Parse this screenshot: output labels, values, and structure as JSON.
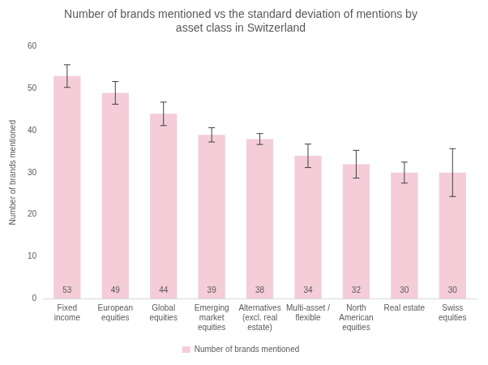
{
  "chart_data": {
    "type": "bar",
    "title": "Number of brands mentioned vs the standard deviation of mentions by asset class in Switzerland",
    "y_label": "Number of brands mentioned",
    "categories": [
      "Fixed income",
      "European equities",
      "Global equities",
      "Emerging market equities",
      "Alternatives (excl. real estate)",
      "Multi-asset / flexible",
      "North American equities",
      "Real estate",
      "Swiss equities"
    ],
    "series": [
      {
        "name": "Number of brands mentioned",
        "color": "#f4cdd9",
        "values": [
          53,
          49,
          44,
          39,
          38,
          34,
          32,
          30,
          30
        ],
        "errors": [
          2.7,
          2.7,
          2.8,
          1.7,
          1.3,
          2.8,
          3.3,
          2.5,
          5.7
        ]
      }
    ],
    "ylim": [
      0,
      60
    ],
    "yticks": [
      0,
      10,
      20,
      30,
      40,
      50,
      60
    ],
    "grid": false,
    "legend": "bottom",
    "data_labels": true
  }
}
